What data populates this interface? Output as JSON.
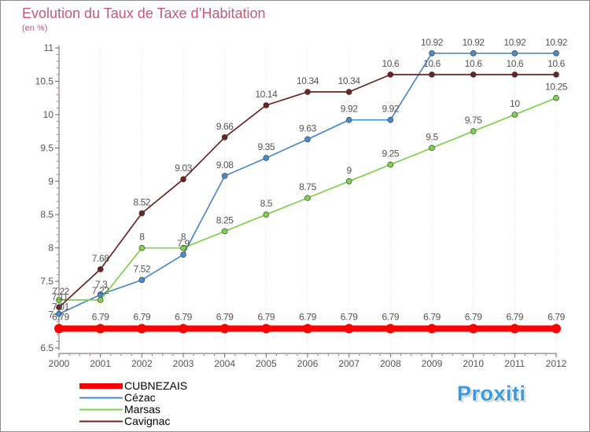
{
  "title": "Evolution du Taux de Taxe d’Habitation",
  "subtitle": "(en %)",
  "watermark": "Proxiti",
  "chart_data": {
    "type": "line",
    "title": "Evolution du Taux de Taxe d’Habitation",
    "subtitle": "(en %)",
    "xlabel": "",
    "ylabel": "",
    "x": [
      2000,
      2001,
      2002,
      2003,
      2004,
      2005,
      2006,
      2007,
      2008,
      2009,
      2010,
      2011,
      2012
    ],
    "ylim": [
      6.5,
      11
    ],
    "yticks": [
      "6.5",
      "7",
      "7.5",
      "8",
      "8.5",
      "9",
      "9.5",
      "10",
      "10.5",
      "11"
    ],
    "grid": "vertical",
    "legend_position": "bottom-left",
    "series": [
      {
        "name": "CUBNEZAIS",
        "color": "#ff0000",
        "values": [
          6.79,
          6.79,
          6.79,
          6.79,
          6.79,
          6.79,
          6.79,
          6.79,
          6.79,
          6.79,
          6.79,
          6.79,
          6.79
        ],
        "labels": [
          "6.79",
          "6.79",
          "6.79",
          "6.79",
          "6.79",
          "6.79",
          "6.79",
          "6.79",
          "6.79",
          "6.79",
          "6.79",
          "6.79",
          "6.79"
        ]
      },
      {
        "name": "Cézac",
        "color": "#4b8bc9",
        "values": [
          7.01,
          7.3,
          7.52,
          7.9,
          9.08,
          9.35,
          9.63,
          9.92,
          9.92,
          10.92,
          10.92,
          10.92,
          10.92
        ],
        "labels": [
          "7.01",
          "7.3",
          "7.52",
          "7.9",
          "9.08",
          "9.35",
          "9.63",
          "9.92",
          "9.92",
          "10.92",
          "10.92",
          "10.92",
          "10.92"
        ]
      },
      {
        "name": "Marsas",
        "color": "#7fd14e",
        "values": [
          7.22,
          7.22,
          8,
          8,
          8.25,
          8.5,
          8.75,
          9,
          9.25,
          9.5,
          9.75,
          10,
          10.25
        ],
        "labels": [
          "7.22",
          "7.22",
          "8",
          "8",
          "8.25",
          "8.5",
          "8.75",
          "9",
          "9.25",
          "9.5",
          "9.75",
          "10",
          "10.25"
        ]
      },
      {
        "name": "Cavignac",
        "color": "#6d2323",
        "values": [
          7.11,
          7.68,
          8.52,
          9.03,
          9.66,
          10.14,
          10.34,
          10.34,
          10.6,
          10.6,
          10.6,
          10.6,
          10.6
        ],
        "labels": [
          "7.11",
          "7.68",
          "8.52",
          "9.03",
          "9.66",
          "10.14",
          "10.34",
          "10.34",
          "10.6",
          "10.6",
          "10.6",
          "10.6",
          "10.6"
        ]
      }
    ]
  }
}
